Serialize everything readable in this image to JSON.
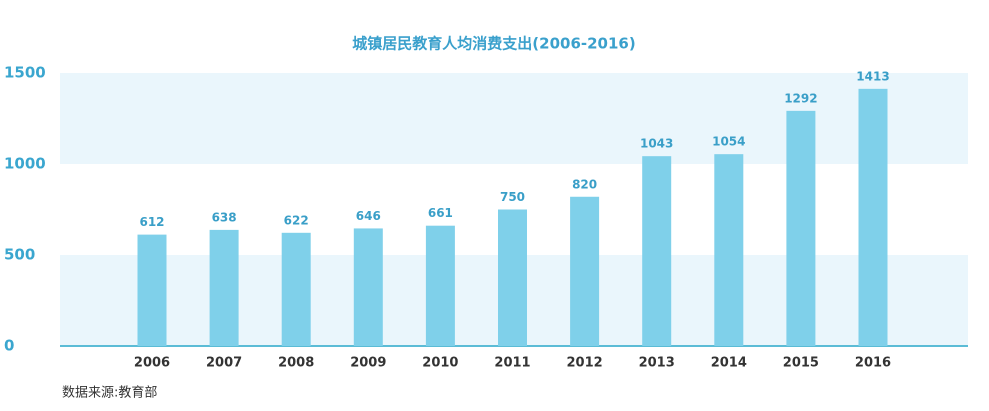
{
  "chart_data": {
    "type": "bar",
    "title": "城镇居民教育人均消费支出(2006-2016)",
    "categories": [
      "2006",
      "2007",
      "2008",
      "2009",
      "2010",
      "2011",
      "2012",
      "2013",
      "2014",
      "2015",
      "2016"
    ],
    "values": [
      612,
      638,
      622,
      646,
      661,
      750,
      820,
      1043,
      1054,
      1292,
      1413
    ],
    "color": "#7fd0ea",
    "ylim": [
      0,
      1500
    ],
    "yticks": [
      0,
      500,
      1000,
      1500
    ],
    "source": "数据来源:教育部"
  }
}
